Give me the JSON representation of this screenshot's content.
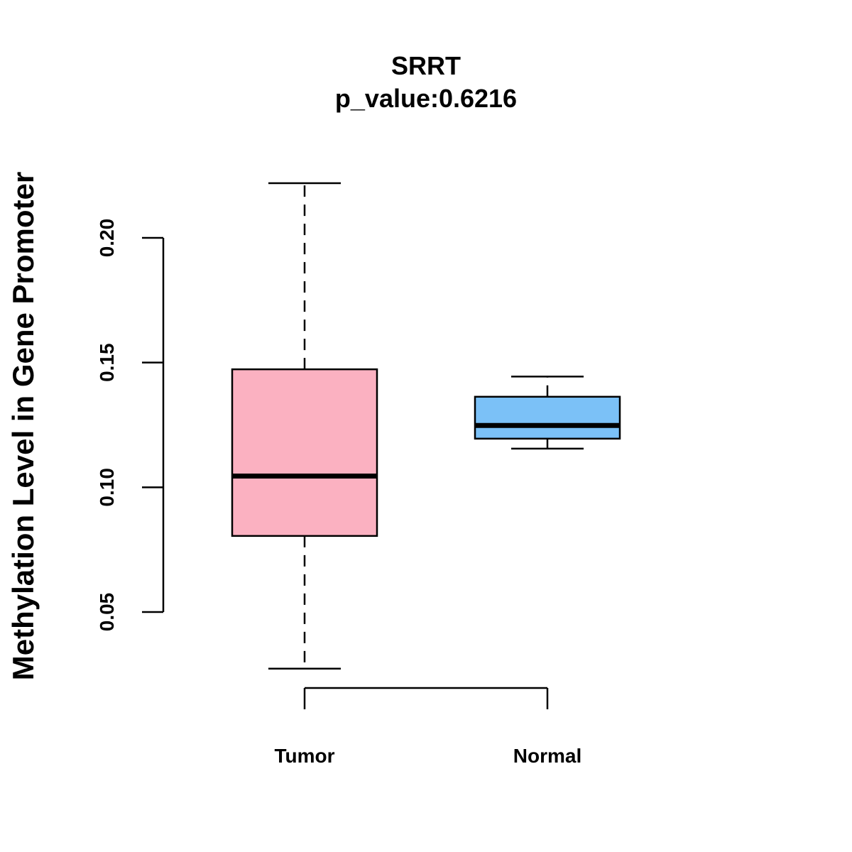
{
  "chart_data": {
    "type": "boxplot",
    "title": "SRRT",
    "subtitle": "p_value:0.6216",
    "xlabel": "",
    "ylabel": "Methylation Level in Gene Promoter",
    "ylim": [
      0.05,
      0.2
    ],
    "yticks": [
      0.05,
      0.1,
      0.15,
      0.2
    ],
    "ytick_labels": [
      "0.05",
      "0.10",
      "0.15",
      "0.20"
    ],
    "categories": [
      "Tumor",
      "Normal"
    ],
    "boxes": [
      {
        "name": "Tumor",
        "whisker_low": 0.0273,
        "q1": 0.0805,
        "median": 0.1045,
        "q3": 0.1473,
        "whisker_high": 0.2219,
        "color": "#FBB1C1",
        "whisker_style": "dashed"
      },
      {
        "name": "Normal",
        "whisker_low": 0.1155,
        "q1": 0.1195,
        "median": 0.1248,
        "q3": 0.1363,
        "whisker_high": 0.1444,
        "color": "#7BC1F7",
        "whisker_style": "dashed"
      }
    ]
  }
}
